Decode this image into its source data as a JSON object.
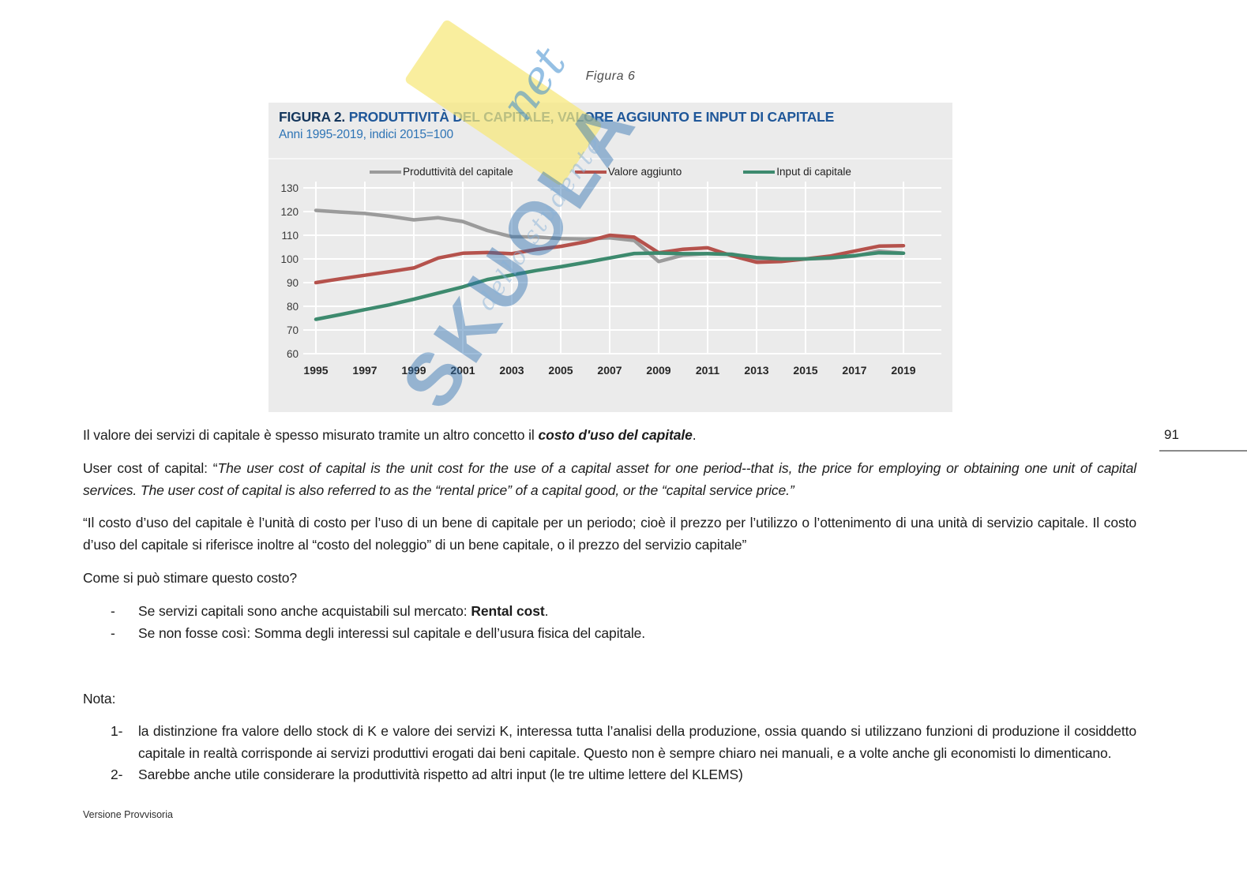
{
  "page": {
    "figure_caption": "Figura 6",
    "page_number": "91",
    "footer": "Versione Provvisoria"
  },
  "watermark": {
    "brand": "SKUOLA",
    "suffix": "net",
    "tagline": "dello studente"
  },
  "figure": {
    "title_label": "FIGURA 2.",
    "title_text": "PRODUTTIVITÀ DEL CAPITALE, VALORE AGGIUNTO E INPUT DI CAPITALE",
    "subtitle": "Anni 1995-2019, indici 2015=100"
  },
  "chart_data": {
    "type": "line",
    "title": "PRODUTTIVITÀ DEL CAPITALE, VALORE AGGIUNTO E INPUT DI CAPITALE",
    "subtitle": "Anni 1995-2019, indici 2015=100",
    "x": [
      1995,
      1996,
      1997,
      1998,
      1999,
      2000,
      2001,
      2002,
      2003,
      2004,
      2005,
      2006,
      2007,
      2008,
      2009,
      2010,
      2011,
      2012,
      2013,
      2014,
      2015,
      2016,
      2017,
      2018,
      2019
    ],
    "xtick_labels": [
      "1995",
      "1997",
      "1999",
      "2001",
      "2003",
      "2005",
      "2007",
      "2009",
      "2011",
      "2013",
      "2015",
      "2017",
      "2019"
    ],
    "yticks": [
      60,
      70,
      80,
      90,
      100,
      110,
      120,
      130
    ],
    "ylim": [
      60,
      130
    ],
    "grid": true,
    "legend_position": "top",
    "series": [
      {
        "name": "Produttività del capitale",
        "color": "#9b9b9b",
        "values": [
          120.5,
          119.8,
          119.2,
          118.0,
          116.5,
          117.4,
          115.8,
          112.0,
          109.4,
          109.3,
          108.6,
          108.4,
          108.9,
          107.8,
          98.9,
          101.6,
          102.3,
          102.0,
          100.1,
          99.6,
          100.0,
          100.3,
          101.2,
          103.3,
          102.4
        ]
      },
      {
        "name": "Valore aggiunto",
        "color": "#b5524c",
        "values": [
          90.0,
          91.6,
          93.1,
          94.6,
          96.2,
          100.4,
          102.4,
          102.7,
          102.2,
          104.0,
          105.3,
          107.2,
          110.0,
          109.2,
          102.6,
          104.1,
          104.7,
          101.3,
          98.6,
          98.9,
          100.0,
          101.2,
          103.3,
          105.4,
          105.6
        ]
      },
      {
        "name": "Input di capitale",
        "color": "#3d8a6e",
        "values": [
          74.5,
          76.5,
          78.6,
          80.6,
          83.0,
          85.6,
          88.2,
          91.3,
          93.2,
          95.1,
          96.7,
          98.5,
          100.4,
          102.3,
          102.5,
          102.2,
          102.2,
          101.9,
          100.6,
          100.0,
          100.0,
          100.5,
          101.4,
          102.6,
          102.4
        ]
      }
    ]
  },
  "content": {
    "p1_prefix": "Il valore dei servizi di capitale è spesso misurato tramite un altro concetto il ",
    "p1_bold": "costo d'uso del capitale",
    "p1_suffix": ".",
    "p2_prefix": "User cost of capital: “",
    "p2_italic": "The user cost of capital is the unit cost for the use of a capital asset for one period--that is, the price for employing or obtaining one unit of capital services. The user cost of capital is also referred to as the “rental price” of a capital good, or the “capital service price.”",
    "p3": "“Il costo d’uso del capitale è l’unità di costo per l’uso di un bene di capitale per un periodo; cioè il prezzo per l’utilizzo o l’ottenimento di una unità di servizio capitale. Il costo d’uso del capitale si riferisce inoltre al “costo del noleggio” di un bene capitale, o il prezzo del servizio capitale”",
    "question": "Come si può stimare questo costo?",
    "bullets": [
      {
        "marker": "-",
        "prefix": "Se servizi capitali sono anche acquistabili sul mercato: ",
        "bold": "Rental cost",
        "suffix": "."
      },
      {
        "marker": "-",
        "prefix": "Se non fosse così: Somma degli interessi sul capitale e dell’usura fisica del capitale.",
        "bold": "",
        "suffix": ""
      }
    ],
    "nota_label": "Nota:",
    "notes": [
      {
        "marker": "1-",
        "text": "la distinzione fra valore dello stock di K e valore dei servizi K, interessa tutta l’analisi della produzione, ossia quando si utilizzano funzioni di produzione il cosiddetto capitale in realtà corrisponde ai servizi produttivi erogati dai beni capitale. Questo non è sempre chiaro nei manuali, e a volte anche gli economisti lo dimenticano."
      },
      {
        "marker": "2-",
        "text": "Sarebbe anche utile considerare la produttività rispetto ad altri input (le tre ultime lettere del KLEMS)"
      }
    ]
  }
}
